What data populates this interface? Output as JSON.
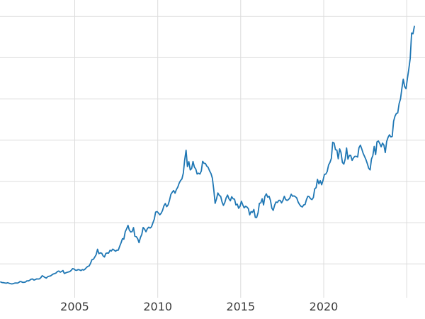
{
  "chart_data": {
    "type": "line",
    "title": "",
    "xlabel": "",
    "ylabel": "",
    "series_name": "price-series",
    "line_color": "#1f77b4",
    "line_width": 1.8,
    "grid_color": "#dcdcdc",
    "background_color": "#ffffff",
    "legend": "none",
    "grid": "on",
    "xlim": [
      2000.5,
      2026.1
    ],
    "ylim": [
      90,
      3700
    ],
    "x_ticks": [
      {
        "year": 2005,
        "label": "2005"
      },
      {
        "year": 2010,
        "label": "2010"
      },
      {
        "year": 2015,
        "label": "2015"
      },
      {
        "year": 2020,
        "label": "2020"
      }
    ],
    "x_gridline_years": [
      2005,
      2010,
      2015,
      2020,
      2025
    ],
    "y_gridlines": [
      500,
      1000,
      1500,
      2000,
      2500,
      3000,
      3500
    ],
    "x_start_year": 2000.5417,
    "x_step_years": 0.0833333,
    "values": [
      281,
      274,
      273,
      270,
      266,
      272,
      266,
      261,
      258,
      260,
      267,
      270,
      267,
      274,
      287,
      283,
      276,
      277,
      281,
      295,
      294,
      302,
      314,
      318,
      304,
      310,
      319,
      317,
      319,
      333,
      357,
      347,
      336,
      328,
      345,
      351,
      355,
      366,
      378,
      382,
      390,
      408,
      414,
      399,
      408,
      420,
      384,
      392,
      398,
      403,
      407,
      423,
      443,
      438,
      424,
      423,
      432,
      428,
      419,
      431,
      425,
      437,
      457,
      470,
      477,
      510,
      552,
      556,
      583,
      612,
      678,
      625,
      634,
      630,
      598,
      584,
      627,
      632,
      631,
      665,
      656,
      680,
      668,
      654,
      666,
      667,
      712,
      755,
      806,
      800,
      890,
      924,
      968,
      910,
      887,
      892,
      940,
      836,
      830,
      807,
      758,
      820,
      858,
      942,
      922,
      890,
      927,
      946,
      935,
      950,
      996,
      1042,
      1128,
      1135,
      1118,
      1096,
      1114,
      1150,
      1204,
      1232,
      1194,
      1216,
      1271,
      1342,
      1370,
      1390,
      1358,
      1402,
      1432,
      1478,
      1512,
      1530,
      1600,
      1758,
      1878,
      1680,
      1740,
      1640,
      1655,
      1742,
      1675,
      1650,
      1590,
      1600,
      1590,
      1626,
      1745,
      1720,
      1718,
      1685,
      1670,
      1628,
      1595,
      1540,
      1400,
      1235,
      1290,
      1360,
      1330,
      1320,
      1250,
      1210,
      1245,
      1302,
      1335,
      1290,
      1265,
      1315,
      1290,
      1285,
      1215,
      1225,
      1175,
      1200,
      1260,
      1215,
      1180,
      1200,
      1190,
      1170,
      1095,
      1135,
      1125,
      1160,
      1065,
      1062,
      1120,
      1235,
      1240,
      1290,
      1215,
      1320,
      1350,
      1310,
      1320,
      1270,
      1175,
      1150,
      1212,
      1250,
      1245,
      1270,
      1270,
      1240,
      1270,
      1320,
      1280,
      1270,
      1280,
      1300,
      1345,
      1320,
      1325,
      1315,
      1300,
      1250,
      1220,
      1200,
      1190,
      1215,
      1220,
      1280,
      1320,
      1315,
      1290,
      1280,
      1305,
      1410,
      1425,
      1525,
      1470,
      1510,
      1460,
      1515,
      1585,
      1590,
      1620,
      1700,
      1730,
      1780,
      1975,
      1965,
      1885,
      1880,
      1775,
      1895,
      1850,
      1730,
      1710,
      1770,
      1905,
      1770,
      1815,
      1815,
      1755,
      1785,
      1805,
      1805,
      1795,
      1910,
      1940,
      1895,
      1840,
      1805,
      1765,
      1715,
      1660,
      1640,
      1770,
      1815,
      1925,
      1825,
      1980,
      1990,
      1960,
      1920,
      1965,
      1940,
      1850,
      1985,
      2035,
      2065,
      2040,
      2045,
      2230,
      2290,
      2325,
      2330,
      2445,
      2500,
      2630,
      2740,
      2650,
      2625,
      2750,
      2860,
      2990,
      3300,
      3290,
      3380
    ]
  }
}
